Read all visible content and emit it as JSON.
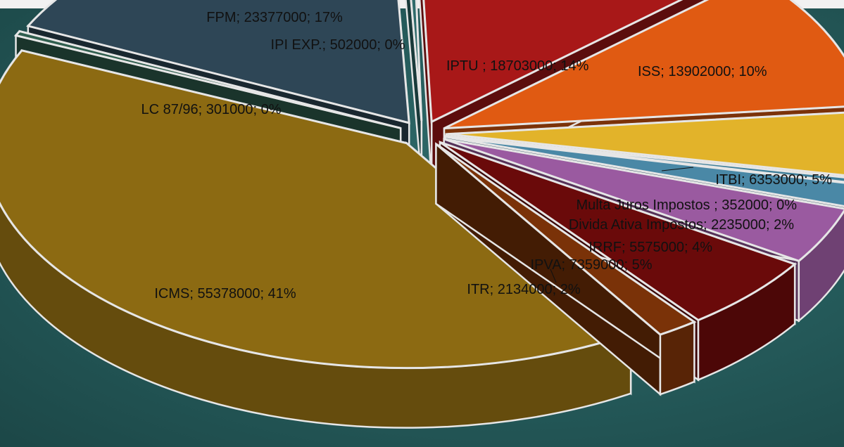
{
  "chart_data": {
    "type": "pie",
    "style": "3d-exploded",
    "slices": [
      {
        "label": "IPTU ; 18703000; 14%",
        "value": 18703000,
        "percent": 14,
        "color": "#a81818"
      },
      {
        "label": "ISS; 13902000; 10%",
        "value": 13902000,
        "percent": 10,
        "color": "#e05a12"
      },
      {
        "label": "ITBI; 6353000; 5%",
        "value": 6353000,
        "percent": 5,
        "color": "#e2b32a"
      },
      {
        "label": "Multa Juros Impostos ; 352000; 0%",
        "value": 352000,
        "percent": 0,
        "color": "#3f7f9a"
      },
      {
        "label": "Divida Ativa Impostos; 2235000; 2%",
        "value": 2235000,
        "percent": 2,
        "color": "#4a88a6"
      },
      {
        "label": "IRRF; 5575000; 4%",
        "value": 5575000,
        "percent": 4,
        "color": "#9a5aa0"
      },
      {
        "label": "IPVA; 7359000; 5%",
        "value": 7359000,
        "percent": 5,
        "color": "#6a0a0a"
      },
      {
        "label": "ITR; 2134000; 2%",
        "value": 2134000,
        "percent": 2,
        "color": "#7a3208"
      },
      {
        "label": "ICMS; 55378000; 41%",
        "value": 55378000,
        "percent": 41,
        "color": "#8c6a12"
      },
      {
        "label": "LC 87/96; 301000; 0%",
        "value": 301000,
        "percent": 0,
        "color": "#2f5e4e"
      },
      {
        "label": "FPM; 23377000; 17%",
        "value": 23377000,
        "percent": 17,
        "color": "#2e4656"
      },
      {
        "label": "IPI EXP.; 502000; 0%",
        "value": 502000,
        "percent": 0,
        "color": "#2e6a6a"
      }
    ]
  }
}
